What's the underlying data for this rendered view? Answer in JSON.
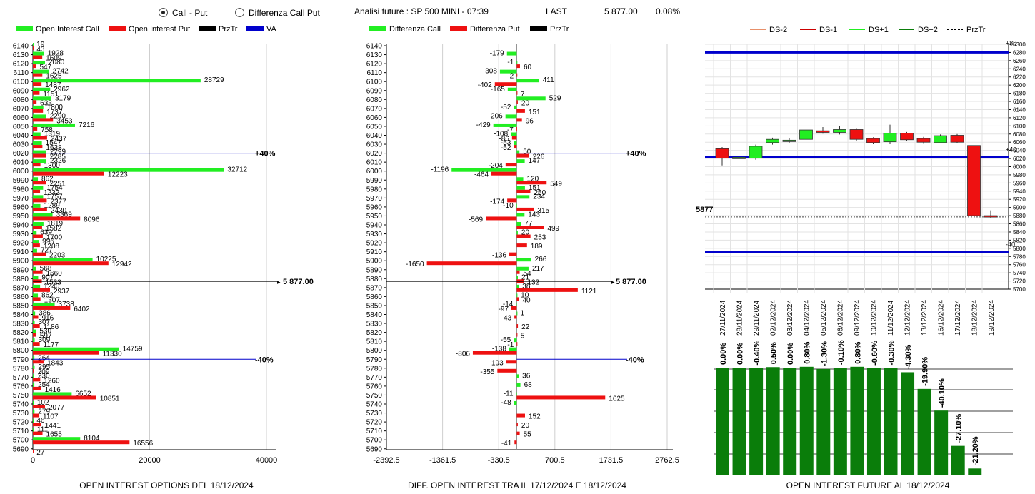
{
  "header": {
    "radio_call_put": "Call - Put",
    "radio_diff": "Differenza Call Put",
    "analysis_label": "Analisi future : SP 500 MINI - 07:39",
    "last_label": "LAST",
    "last_value": "5 877.00",
    "last_change": "0.08%"
  },
  "colors": {
    "green": "#22ee22",
    "red": "#ee1111",
    "blue": "#0000cc",
    "darkgreen": "#0a7d0a",
    "black": "#000000"
  },
  "chart_data": [
    {
      "type": "bar",
      "title": "OPEN INTEREST OPTIONS DEL 18/12/2024",
      "legend": [
        "Open Interest Call",
        "Open Interest Put",
        "PrzTr",
        "VA"
      ],
      "legend_colors": [
        "#22ee22",
        "#ee1111",
        "#000000",
        "#0000cc"
      ],
      "strikes": [
        6140,
        6130,
        6120,
        6110,
        6100,
        6090,
        6080,
        6070,
        6060,
        6050,
        6040,
        6030,
        6020,
        6010,
        6000,
        5990,
        5980,
        5970,
        5960,
        5950,
        5940,
        5930,
        5920,
        5910,
        5900,
        5890,
        5880,
        5870,
        5860,
        5850,
        5840,
        5830,
        5820,
        5810,
        5800,
        5790,
        5780,
        5770,
        5760,
        5750,
        5740,
        5730,
        5720,
        5710,
        5700,
        5690
      ],
      "calls": [
        19,
        1928,
        2080,
        2742,
        28729,
        2962,
        3179,
        1800,
        2290,
        7216,
        1319,
        1547,
        2299,
        2326,
        32712,
        862,
        1754,
        1757,
        1289,
        3369,
        1819,
        639,
        996,
        727,
        10225,
        568,
        907,
        1240,
        862,
        3738,
        386,
        307,
        530,
        309,
        14759,
        264,
        295,
        230,
        254,
        6652,
        102,
        279,
        46,
        111,
        8104,
        0
      ],
      "puts": [
        43,
        1609,
        547,
        1625,
        1487,
        1151,
        633,
        1737,
        3453,
        758,
        2437,
        1638,
        2285,
        1300,
        12223,
        2251,
        1232,
        2377,
        2430,
        8096,
        1582,
        1700,
        1208,
        2203,
        12942,
        1660,
        1533,
        2937,
        1307,
        6402,
        916,
        1186,
        597,
        1177,
        11330,
        1843,
        209,
        1260,
        1416,
        10851,
        2077,
        1107,
        1441,
        1655,
        16556,
        27
      ],
      "price_level": 5877,
      "price_label": "5 877.00",
      "pct_upper_strike": 6020,
      "pct_lower_strike": 5790,
      "pct_upper_label": "+40%",
      "pct_lower_label": "-40%",
      "x_ticks": [
        "0",
        "20000",
        "40000"
      ],
      "x_range": [
        0,
        40000
      ]
    },
    {
      "type": "bar",
      "title": "DIFF. OPEN INTEREST TRA IL 17/12/2024 E 18/12/2024",
      "legend": [
        "Differenza Call",
        "Differenza Put",
        "PrzTr"
      ],
      "legend_colors": [
        "#22ee22",
        "#ee1111",
        "#000000"
      ],
      "strikes": [
        6140,
        6130,
        6120,
        6110,
        6100,
        6090,
        6080,
        6070,
        6060,
        6050,
        6040,
        6030,
        6020,
        6010,
        6000,
        5990,
        5980,
        5970,
        5960,
        5950,
        5940,
        5930,
        5920,
        5910,
        5900,
        5890,
        5880,
        5870,
        5860,
        5850,
        5840,
        5830,
        5820,
        5810,
        5800,
        5790,
        5780,
        5770,
        5760,
        5750,
        5740,
        5730,
        5720,
        5710,
        5700,
        5690
      ],
      "diff_call": [
        0,
        -179,
        -1,
        -308,
        411,
        -165,
        529,
        -52,
        -206,
        -429,
        -108,
        -53,
        50,
        147,
        -1196,
        120,
        151,
        234,
        -10,
        143,
        77,
        20,
        0,
        0,
        266,
        217,
        21,
        38,
        10,
        -14,
        1,
        0,
        0,
        -55,
        -138,
        0,
        0,
        36,
        68,
        -11,
        -48,
        0,
        0,
        0,
        0,
        0
      ],
      "diff_put": [
        0,
        0,
        60,
        -2,
        -402,
        7,
        20,
        151,
        96,
        -7,
        -86,
        -52,
        226,
        -204,
        -464,
        549,
        250,
        -174,
        315,
        -569,
        499,
        253,
        189,
        -136,
        -1650,
        54,
        132,
        1121,
        40,
        -97,
        -43,
        22,
        5,
        -1,
        -806,
        -193,
        -355,
        0,
        0,
        1625,
        0,
        152,
        20,
        55,
        -41,
        0
      ],
      "diff_call_labels": [
        "",
        "-179",
        "-1",
        "-308",
        "411",
        "-165",
        "529",
        "-52",
        "-206",
        "-429",
        "-108",
        "-53",
        "50",
        "147",
        "-1196",
        "120",
        "151",
        "234",
        "-10",
        "143",
        "77",
        "20",
        "",
        "",
        "266",
        "217",
        "21",
        "38",
        "10",
        "-14",
        "1",
        "",
        "",
        "-55",
        "-138",
        "",
        "",
        "36",
        "68",
        "-11",
        "-48",
        "",
        "",
        "",
        "",
        ""
      ],
      "diff_put_labels": [
        "",
        "",
        "60",
        "-2",
        "-402",
        "7",
        "20",
        "151",
        "96",
        "-7",
        "-86",
        "-52",
        "226",
        "-204",
        "-464",
        "549",
        "250",
        "-174",
        "315",
        "-569",
        "499",
        "253",
        "189",
        "-136",
        "-1650",
        "54",
        "132",
        "1121",
        "40",
        "-97",
        "-43",
        "22",
        "5",
        "-1",
        "-806",
        "-193",
        "-355",
        "",
        "",
        "1625",
        "",
        "152",
        "20",
        "55",
        "-41",
        ""
      ],
      "price_label": "5 877.00",
      "pct_upper_label": "+40%",
      "pct_lower_label": "-40%",
      "x_ticks": [
        "-2392.5",
        "-1361.5",
        "-330.5",
        "700.5",
        "1731.5",
        "2762.5"
      ],
      "x_range": [
        -2392.5,
        2762.5
      ]
    },
    {
      "type": "candlestick",
      "title": "",
      "legend": [
        "DS-2",
        "DS-1",
        "DS+1",
        "DS+2",
        "PrzTr"
      ],
      "legend_colors": [
        "#e8906a",
        "#cc0000",
        "#22ee22",
        "#0a7d0a",
        "#000000"
      ],
      "dates": [
        "27/11/2024",
        "28/11/2024",
        "29/11/2024",
        "02/12/2024",
        "03/12/2024",
        "04/12/2024",
        "05/12/2024",
        "06/12/2024",
        "09/12/2024",
        "10/12/2024",
        "11/12/2024",
        "12/12/2024",
        "13/12/2024",
        "16/12/2024",
        "17/12/2024",
        "18/12/2024",
        "19/12/2024"
      ],
      "open": [
        6044,
        6023,
        6021,
        6059,
        6062,
        6067,
        6088,
        6084,
        6091,
        6069,
        6061,
        6082,
        6069,
        6059,
        6077,
        6052,
        5880
      ],
      "close": [
        6021,
        6023,
        6050,
        6067,
        6065,
        6090,
        6084,
        6091,
        6067,
        6059,
        6082,
        6066,
        6060,
        6076,
        6060,
        5880,
        5877
      ],
      "high": [
        6048,
        6026,
        6054,
        6071,
        6070,
        6094,
        6097,
        6099,
        6093,
        6072,
        6103,
        6085,
        6073,
        6079,
        6080,
        6060,
        5893
      ],
      "low": [
        6003,
        6020,
        6017,
        6054,
        6058,
        6063,
        6081,
        6079,
        6063,
        6055,
        6055,
        6063,
        6056,
        6057,
        6058,
        5845,
        5875
      ],
      "y_range": [
        5700,
        6300
      ],
      "y_ticks": [
        5700,
        5720,
        5740,
        5760,
        5780,
        5800,
        5820,
        5840,
        5860,
        5880,
        5900,
        5920,
        5940,
        5960,
        5980,
        6000,
        6020,
        6040,
        6060,
        6080,
        6100,
        6120,
        6140,
        6160,
        6180,
        6200,
        6220,
        6240,
        6260,
        6280,
        6300
      ],
      "upper_band": 6280,
      "mid_band": 6023,
      "lower_band": 5790,
      "price_level": 5877,
      "price_label": "5877",
      "upper_band_label": "+80",
      "mid_band_label": "+40",
      "lower_band_label": "-40"
    },
    {
      "type": "bar",
      "title": "OPEN INTEREST FUTURE AL 18/12/2024",
      "categories": [
        "27/11/2024",
        "28/11/2024",
        "29/11/2024",
        "02/12/2024",
        "03/12/2024",
        "04/12/2024",
        "05/12/2024",
        "06/12/2024",
        "09/12/2024",
        "10/12/2024",
        "11/12/2024",
        "12/12/2024",
        "13/12/2024",
        "16/12/2024",
        "17/12/2024",
        "18/12/2024",
        "19/12/2024"
      ],
      "values": [
        100,
        100,
        99.6,
        100.5,
        100,
        100.8,
        98.7,
        99.9,
        100.8,
        99.4,
        99.7,
        95.7,
        80.1,
        59.9,
        26.9,
        5.8,
        0
      ],
      "labels": [
        "0.00%",
        "0.00%",
        "-0.40%",
        "0.50%",
        "0.00%",
        "0.80%",
        "-1.30%",
        "-0.10%",
        "0.80%",
        "-0.60%",
        "-0.30%",
        "-4.30%",
        "-19.90%",
        "-40.10%",
        "-27.10%",
        "-21.20%",
        ""
      ]
    }
  ]
}
